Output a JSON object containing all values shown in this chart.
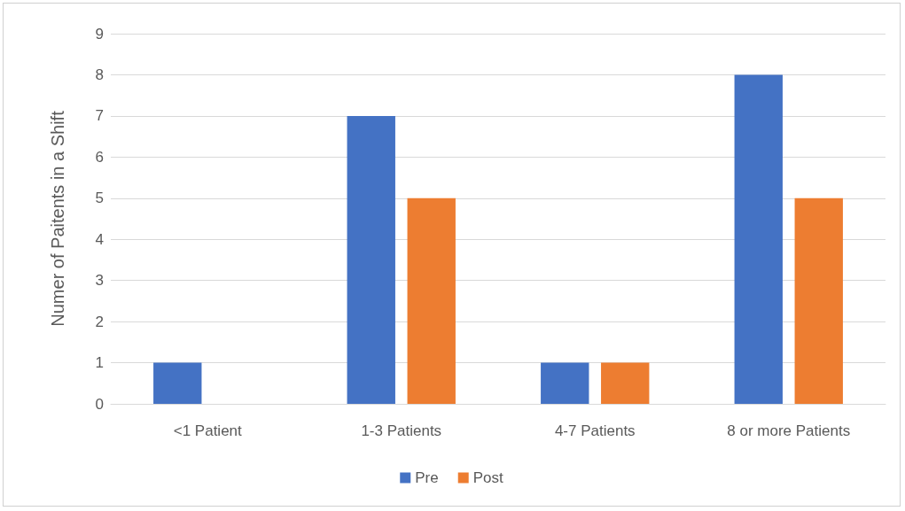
{
  "chart_data": {
    "type": "bar",
    "ylabel": "Numer of Paitents in a Shift",
    "categories": [
      "<1 Patient",
      "1-3 Patients",
      "4-7 Patients",
      "8 or more Patients"
    ],
    "series": [
      {
        "name": "Pre",
        "color": "#4472c4",
        "values": [
          1,
          7,
          1,
          8
        ]
      },
      {
        "name": "Post",
        "color": "#ed7d31",
        "values": [
          0,
          5,
          1,
          5
        ]
      }
    ],
    "ylim": [
      0,
      9
    ],
    "yticks": [
      0,
      1,
      2,
      3,
      4,
      5,
      6,
      7,
      8,
      9
    ],
    "grid": "y",
    "legend": "bottom"
  }
}
